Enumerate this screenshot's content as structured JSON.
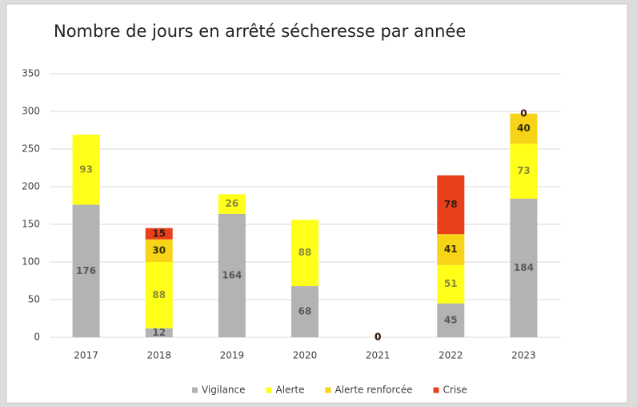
{
  "chart_data": {
    "type": "bar",
    "stacked": true,
    "title": "Nombre de jours en arrêté sécheresse par année",
    "categories": [
      "2017",
      "2018",
      "2019",
      "2020",
      "2021",
      "2022",
      "2023"
    ],
    "series": [
      {
        "name": "Vigilance",
        "color": "#b3b3b3",
        "label_color": "#595959",
        "values": [
          176,
          12,
          164,
          68,
          0,
          45,
          184
        ]
      },
      {
        "name": "Alerte",
        "color": "#ffff1a",
        "label_color": "#8a8a3a",
        "values": [
          93,
          88,
          26,
          88,
          0,
          51,
          73
        ]
      },
      {
        "name": "Alerte renforcée",
        "color": "#f7d417",
        "label_color": "#3a3200",
        "values": [
          null,
          30,
          null,
          null,
          0,
          41,
          40
        ]
      },
      {
        "name": "Crise",
        "color": "#e8401c",
        "label_color": "#3a1a10",
        "values": [
          null,
          15,
          null,
          null,
          0,
          78,
          0
        ]
      }
    ],
    "ylim": [
      0,
      350
    ],
    "yticks": [
      0,
      50,
      100,
      150,
      200,
      250,
      300,
      350
    ],
    "grid": true,
    "legend": "bottom"
  }
}
